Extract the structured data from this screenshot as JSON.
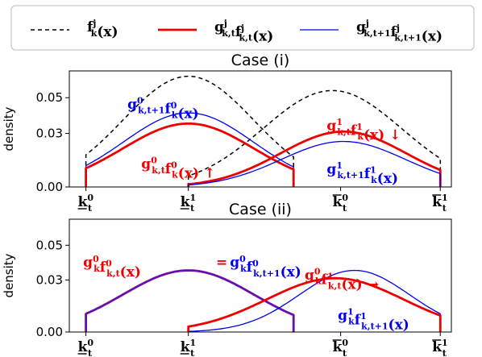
{
  "legend": {
    "entries": [
      {
        "main": "f",
        "sup": "j",
        "sub": "k",
        "arg": "(x)",
        "color": "#000000",
        "style": "dashed"
      },
      {
        "main": "g",
        "sup": "j",
        "sub": "k,t",
        "main2": "f",
        "sup2": "j",
        "sub2": "k,t",
        "arg": "(x)",
        "color": "#ee0000",
        "style": "thick"
      },
      {
        "main": "g",
        "sup": "j",
        "sub": "k,t+1",
        "main2": "f",
        "sup2": "j",
        "sub2": "k,t+1",
        "arg": "(x)",
        "color": "#0000ee",
        "style": "thin"
      }
    ]
  },
  "chart_data": [
    {
      "type": "line",
      "title": "Case (i)",
      "ylabel": "density",
      "ylim": [
        0,
        0.065
      ],
      "xlim": [
        -0.6,
        13.2
      ],
      "yticks": [
        "0.00",
        "0.03",
        "0.05"
      ],
      "ytick_values": [
        0,
        0.03,
        0.05
      ],
      "xticks": [
        {
          "main": "k",
          "sup": "0",
          "sub": "t",
          "bar": "under",
          "value": 0
        },
        {
          "main": "k",
          "sup": "1",
          "sub": "t",
          "bar": "under",
          "value": 3.7
        },
        {
          "main": "k",
          "sup": "0",
          "sub": "t",
          "bar": "over",
          "value": 9.2
        },
        {
          "main": "k",
          "sup": "1",
          "sub": "t",
          "bar": "over",
          "value": 12.8
        }
      ],
      "series": [
        {
          "name": "f_k^0(x)",
          "color": "#000000",
          "style": "dashed",
          "x0": 0,
          "x1": 7.5,
          "peak": 3.7,
          "ymax": 0.062,
          "yend": 0.018
        },
        {
          "name": "f_k^1(x)",
          "color": "#000000",
          "style": "dashed",
          "x0": 3.7,
          "x1": 12.8,
          "peak": 8.9,
          "ymax": 0.054,
          "yend": 0.016
        },
        {
          "name": "g_{k,t+1}^0 f_k^0(x)",
          "color": "#0000ee",
          "style": "thin",
          "x0": 0,
          "x1": 7.5,
          "peak": 3.7,
          "ymax": 0.0415,
          "yend": 0.012
        },
        {
          "name": "g_{k,t}^0 f_k^0(x)",
          "color": "#ee0000",
          "style": "thick",
          "x0": 0,
          "x1": 7.5,
          "peak": 3.7,
          "ymax": 0.0355,
          "yend": 0.0105
        },
        {
          "name": "g_{k,t}^1 f_k^1(x)",
          "color": "#ee0000",
          "style": "thick",
          "x0": 3.7,
          "x1": 12.8,
          "peak": 9.3,
          "ymax": 0.031,
          "yend": 0.0095
        },
        {
          "name": "g_{k,t+1}^1 f_k^1(x)",
          "color": "#0000ee",
          "style": "thin",
          "x0": 3.7,
          "x1": 12.8,
          "peak": 9.3,
          "ymax": 0.0255,
          "yend": 0.0075
        }
      ],
      "annotations": [
        {
          "color": "#0000ee",
          "x": 1.5,
          "y": 0.0438,
          "parts": [
            [
              "g",
              "0",
              "k,t+1"
            ],
            [
              "f",
              "0",
              "k"
            ]
          ],
          "arg": "(x)",
          "suffix": ""
        },
        {
          "color": "#ee0000",
          "x": 2.0,
          "y": 0.0103,
          "parts": [
            [
              "g",
              "0",
              "k,t"
            ],
            [
              "f",
              "0",
              "k"
            ]
          ],
          "arg": "(x)",
          "suffix": " ↑"
        },
        {
          "color": "#ee0000",
          "x": 8.7,
          "y": 0.0318,
          "parts": [
            [
              "g",
              "1",
              "k,t"
            ],
            [
              "f",
              "1",
              "k"
            ]
          ],
          "arg": "(x)",
          "suffix": " ↓"
        },
        {
          "color": "#0000ee",
          "x": 8.7,
          "y": 0.0075,
          "parts": [
            [
              "g",
              "1",
              "k,t+1"
            ],
            [
              "f",
              "1",
              "k"
            ]
          ],
          "arg": "(x)",
          "suffix": ""
        }
      ]
    },
    {
      "type": "line",
      "title": "Case (ii)",
      "ylabel": "density",
      "ylim": [
        0,
        0.065
      ],
      "xlim": [
        -0.6,
        13.2
      ],
      "yticks": [
        "0.00",
        "0.03",
        "0.05"
      ],
      "ytick_values": [
        0,
        0.03,
        0.05
      ],
      "xticks": [
        {
          "main": "k",
          "sup": "0",
          "sub": "t",
          "bar": "under",
          "value": 0
        },
        {
          "main": "k",
          "sup": "1",
          "sub": "t",
          "bar": "under",
          "value": 3.7
        },
        {
          "main": "k",
          "sup": "0",
          "sub": "t",
          "bar": "over",
          "value": 9.2
        },
        {
          "main": "k",
          "sup": "1",
          "sub": "t",
          "bar": "over",
          "value": 12.8
        }
      ],
      "series": [
        {
          "name": "g_k^0 f_{k,t}^0(x) = g_k^0 f_{k,t+1}^0(x)",
          "color": "#6a0dad",
          "style": "thick",
          "x0": 0,
          "x1": 7.5,
          "peak": 3.7,
          "ymax": 0.0355,
          "yend": 0.0105
        },
        {
          "name": "g_k^1 f_{k,t+1}^1(x)",
          "color": "#0000ee",
          "style": "thin",
          "x0": 3.7,
          "x1": 12.8,
          "peak": 9.7,
          "ymax": 0.0355,
          "yend": 0.0105
        },
        {
          "name": "g_k^0 f_{k,t}^1(x)",
          "color": "#ee0000",
          "style": "thick",
          "x0": 3.7,
          "x1": 12.8,
          "peak": 9.0,
          "ymax": 0.031,
          "yend": 0.0095
        }
      ],
      "annotations": [
        {
          "color": "#ee0000",
          "x": -0.1,
          "y": 0.0375,
          "parts": [
            [
              "g",
              "0",
              "k"
            ],
            [
              "f",
              "0",
              "k,t"
            ]
          ],
          "arg": "(x)",
          "suffix": ""
        },
        {
          "color": "#ee0000",
          "x": 4.7,
          "y": 0.0375,
          "parts": [],
          "arg": "=",
          "suffix": ""
        },
        {
          "color": "#0000ee",
          "x": 5.2,
          "y": 0.0375,
          "parts": [
            [
              "g",
              "0",
              "k"
            ],
            [
              "f",
              "0",
              "k,t+1"
            ]
          ],
          "arg": "(x)",
          "suffix": ""
        },
        {
          "color": "#ee0000",
          "x": 7.9,
          "y": 0.0302,
          "parts": [
            [
              "g",
              "0",
              "k"
            ],
            [
              "f",
              "1",
              "k,t"
            ]
          ],
          "arg": "(x)",
          "suffix": " →"
        },
        {
          "color": "#0000ee",
          "x": 9.1,
          "y": 0.007,
          "parts": [
            [
              "g",
              "1",
              "k"
            ],
            [
              "f",
              "1",
              "k,t+1"
            ]
          ],
          "arg": "(x)",
          "suffix": ""
        }
      ]
    }
  ]
}
